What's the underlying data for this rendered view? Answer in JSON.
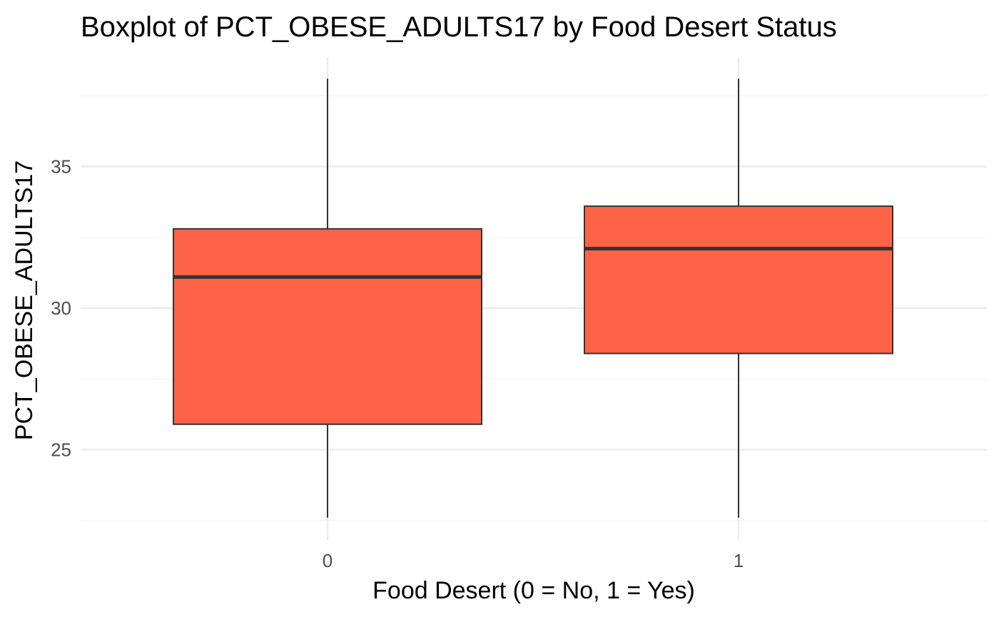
{
  "chart_data": {
    "type": "boxplot",
    "title": "Boxplot of PCT_OBESE_ADULTS17 by Food Desert Status",
    "xlabel": "Food Desert (0 = No, 1 = Yes)",
    "ylabel": "PCT_OBESE_ADULTS17",
    "categories": [
      "0",
      "1"
    ],
    "boxes": [
      {
        "category": "0",
        "whisker_low": 22.6,
        "q1": 25.9,
        "median": 31.1,
        "q3": 32.8,
        "whisker_high": 38.1
      },
      {
        "category": "1",
        "whisker_low": 22.6,
        "q1": 28.4,
        "median": 32.1,
        "q3": 33.6,
        "whisker_high": 38.1
      }
    ],
    "yticks": [
      25,
      30,
      35
    ],
    "ylim": [
      22.4,
      38.1
    ],
    "grid": true,
    "legend": "none",
    "fill_color": "#ff6347",
    "outline_color": "#333333",
    "grid_major_color": "#ebebeb",
    "grid_minor_color": "#f5f5f5"
  }
}
